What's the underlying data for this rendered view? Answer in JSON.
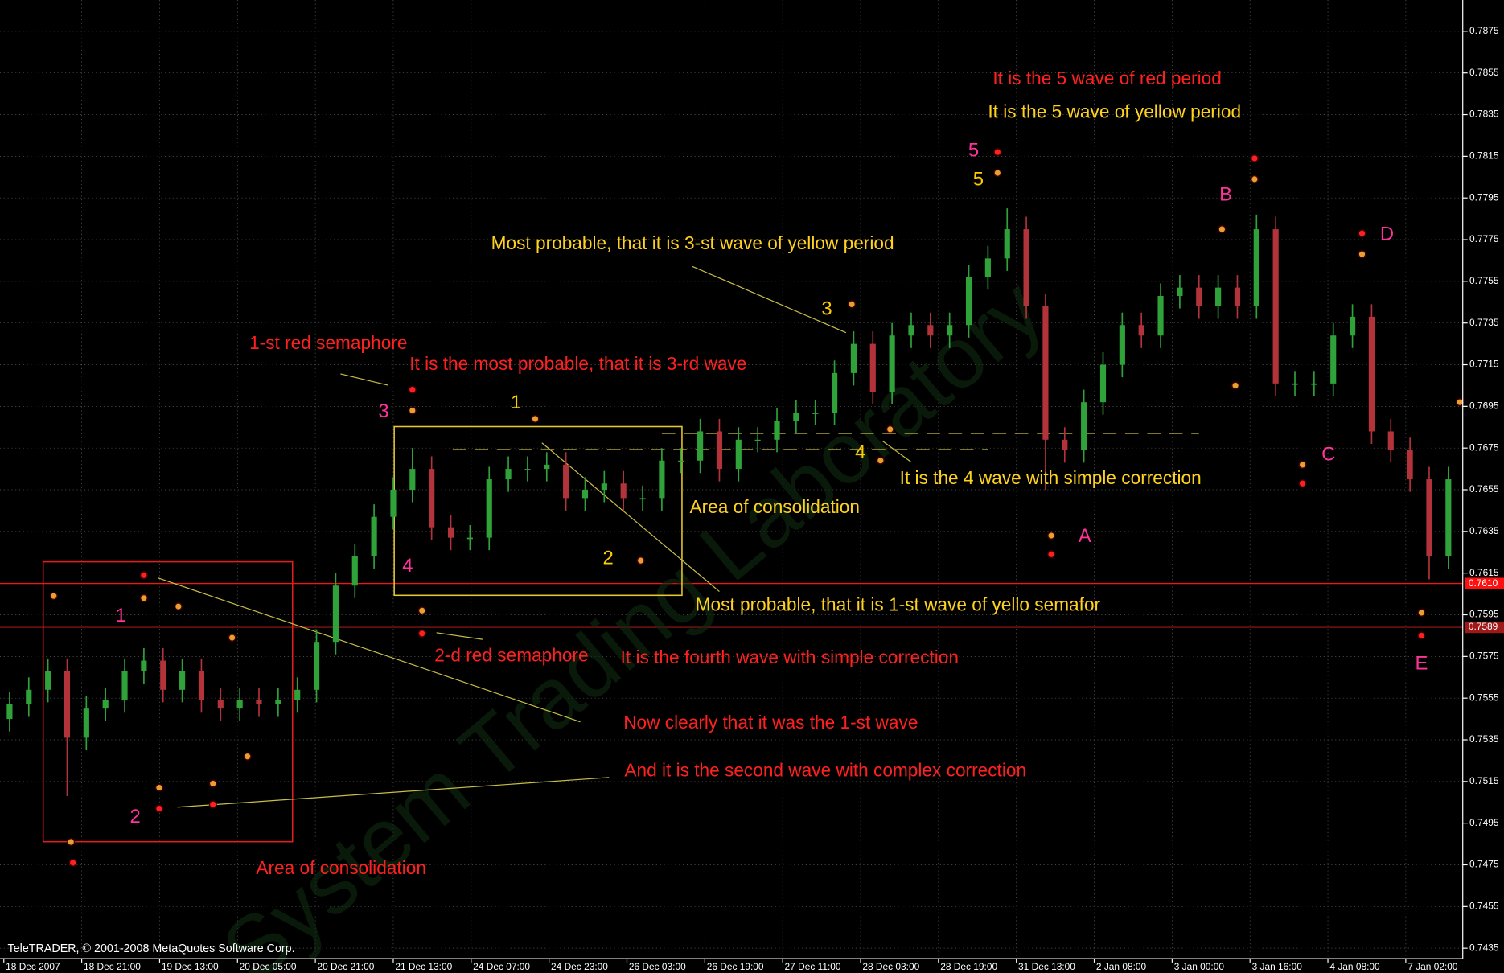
{
  "footer": "TeleTRADER, © 2001-2008 MetaQuotes Software Corp.",
  "watermark": "System Trading Laboratory",
  "chart_data": {
    "type": "candlestick",
    "categories": [
      "18 Dec 2007",
      "18 Dec 21:00",
      "19 Dec 13:00",
      "20 Dec 05:00",
      "20 Dec 21:00",
      "21 Dec 13:00",
      "24 Dec 07:00",
      "24 Dec 23:00",
      "26 Dec 03:00",
      "26 Dec 19:00",
      "27 Dec 11:00",
      "28 Dec 03:00",
      "28 Dec 19:00",
      "31 Dec 13:00",
      "2 Jan 08:00",
      "3 Jan 00:00",
      "3 Jan 16:00",
      "4 Jan 08:00",
      "7 Jan 02:00"
    ],
    "open": [
      0.7545,
      0.7552,
      0.7559,
      0.7568,
      0.7536,
      0.755,
      0.7554,
      0.7568,
      0.7573,
      0.7559,
      0.7568,
      0.7554,
      0.755,
      0.7554,
      0.7552,
      0.7554,
      0.7559,
      0.7582,
      0.7609,
      0.7623,
      0.7642,
      0.7655,
      0.7665,
      0.7637,
      0.7632,
      0.7632,
      0.766,
      0.7665,
      0.7665,
      0.7667,
      0.7651,
      0.7655,
      0.7658,
      0.7651,
      0.7651,
      0.7669,
      0.7669,
      0.7683,
      0.7665,
      0.7679,
      0.7679,
      0.7688,
      0.7692,
      0.7692,
      0.7711,
      0.7725,
      0.7702,
      0.7729,
      0.7734,
      0.7729,
      0.7734,
      0.7757,
      0.7766,
      0.778,
      0.7743,
      0.7679,
      0.7674,
      0.7697,
      0.7715,
      0.7734,
      0.7729,
      0.7748,
      0.7752,
      0.7743,
      0.7752,
      0.7743,
      0.778,
      0.7706,
      0.7706,
      0.7706,
      0.7729,
      0.7738,
      0.7683,
      0.7674,
      0.766,
      0.7623
    ],
    "high": [
      0.7558,
      0.7565,
      0.7574,
      0.7574,
      0.7556,
      0.756,
      0.7574,
      0.7579,
      0.7579,
      0.7574,
      0.7574,
      0.756,
      0.756,
      0.756,
      0.756,
      0.7565,
      0.7588,
      0.7615,
      0.7629,
      0.7648,
      0.7661,
      0.7675,
      0.7671,
      0.7643,
      0.7638,
      0.7666,
      0.7671,
      0.7671,
      0.7673,
      0.7673,
      0.7661,
      0.7664,
      0.7664,
      0.7657,
      0.7675,
      0.7675,
      0.7689,
      0.7689,
      0.7685,
      0.7685,
      0.7694,
      0.7698,
      0.7698,
      0.7717,
      0.7731,
      0.7731,
      0.7735,
      0.774,
      0.774,
      0.774,
      0.7763,
      0.7772,
      0.779,
      0.7786,
      0.7749,
      0.7685,
      0.7703,
      0.7721,
      0.774,
      0.774,
      0.7754,
      0.7758,
      0.7758,
      0.7758,
      0.7758,
      0.7787,
      0.7786,
      0.7712,
      0.7712,
      0.7735,
      0.7744,
      0.7744,
      0.7689,
      0.768,
      0.7666,
      0.7666
    ],
    "low": [
      0.7539,
      0.7546,
      0.7553,
      0.7508,
      0.753,
      0.7544,
      0.7548,
      0.7562,
      0.7553,
      0.7553,
      0.7548,
      0.7544,
      0.7544,
      0.7546,
      0.7546,
      0.7548,
      0.7553,
      0.7576,
      0.7603,
      0.7617,
      0.7636,
      0.7649,
      0.7631,
      0.7626,
      0.7626,
      0.7626,
      0.7654,
      0.7659,
      0.7659,
      0.7645,
      0.7645,
      0.7649,
      0.7645,
      0.7645,
      0.7645,
      0.7663,
      0.7663,
      0.7659,
      0.7659,
      0.7673,
      0.7673,
      0.7682,
      0.7686,
      0.7686,
      0.7705,
      0.7696,
      0.7696,
      0.7723,
      0.7723,
      0.7723,
      0.7728,
      0.7751,
      0.776,
      0.7737,
      0.7655,
      0.7668,
      0.7668,
      0.7691,
      0.7709,
      0.7723,
      0.7723,
      0.7742,
      0.7737,
      0.7737,
      0.7737,
      0.7737,
      0.77,
      0.77,
      0.77,
      0.77,
      0.7723,
      0.7677,
      0.7668,
      0.7654,
      0.7612,
      0.7617
    ],
    "close": [
      0.7552,
      0.7559,
      0.7568,
      0.7536,
      0.755,
      0.7554,
      0.7568,
      0.7573,
      0.7559,
      0.7568,
      0.7554,
      0.755,
      0.7554,
      0.7552,
      0.7554,
      0.7559,
      0.7582,
      0.7609,
      0.7623,
      0.7642,
      0.7655,
      0.7665,
      0.7637,
      0.7632,
      0.7632,
      0.766,
      0.7665,
      0.7665,
      0.7667,
      0.7651,
      0.7655,
      0.7658,
      0.7651,
      0.7651,
      0.7669,
      0.7669,
      0.7683,
      0.7665,
      0.7679,
      0.7679,
      0.7688,
      0.7692,
      0.7692,
      0.7711,
      0.7725,
      0.7702,
      0.7729,
      0.7734,
      0.7729,
      0.7734,
      0.7757,
      0.7766,
      0.778,
      0.7743,
      0.7679,
      0.7674,
      0.7697,
      0.7715,
      0.7734,
      0.7729,
      0.7748,
      0.7752,
      0.7743,
      0.7752,
      0.7743,
      0.778,
      0.7706,
      0.7706,
      0.7706,
      0.7729,
      0.7738,
      0.7683,
      0.7674,
      0.766,
      0.7623,
      0.766
    ],
    "up_color": "#2fa33a",
    "down_color": "#b3333a",
    "ylim": [
      0.743,
      0.789
    ],
    "yticks": [
      0.7435,
      0.7455,
      0.7475,
      0.7495,
      0.7515,
      0.7535,
      0.7555,
      0.7575,
      0.7595,
      0.7615,
      0.7635,
      0.7655,
      0.7675,
      0.7695,
      0.7715,
      0.7735,
      0.7755,
      0.7775,
      0.7795,
      0.7815,
      0.7835,
      0.7855,
      0.7875
    ],
    "grid": true,
    "price_lines": [
      {
        "value": 0.761,
        "label": "0.7610",
        "color": "#ff1010"
      },
      {
        "value": 0.7589,
        "label": "0.7589",
        "color": "#a01818"
      }
    ],
    "markers": [
      {
        "color": "#ff2020",
        "x": [
          7,
          3.3,
          7.8,
          10.6,
          21,
          21.5,
          51.5,
          54.3,
          64.9,
          67.4,
          70.5,
          73.6
        ],
        "y": [
          0.7614,
          0.7476,
          0.7502,
          0.7504,
          0.7703,
          0.7586,
          0.7817,
          0.7624,
          0.7814,
          0.7658,
          0.7778,
          0.7585
        ]
      },
      {
        "color": "#e8a030",
        "x": [
          2.3,
          7,
          8.8,
          11.6,
          3.2,
          7.8,
          10.6,
          12.4,
          21,
          21.5,
          27.4,
          32.9,
          43.9,
          45.9,
          45.4,
          51.5,
          54.3,
          63.2,
          64.9,
          63.9,
          67.4,
          70.5,
          73.6,
          75.6
        ],
        "y": [
          0.7604,
          0.7603,
          0.7599,
          0.7584,
          0.7486,
          0.7512,
          0.7514,
          0.7527,
          0.7693,
          0.7597,
          0.7689,
          0.7621,
          0.7744,
          0.7684,
          0.7669,
          0.7807,
          0.7633,
          0.778,
          0.7804,
          0.7705,
          0.7667,
          0.7768,
          0.7596,
          0.7697
        ]
      }
    ],
    "annotations": [
      {
        "text": "It is the 5 wave of red period",
        "color": "#ff2020"
      },
      {
        "text": "It is the 5 wave of yellow period",
        "color": "#ffd21f"
      },
      {
        "text": "Most probable, that it is 3-st wave of yellow period",
        "color": "#ffd21f"
      },
      {
        "text": "1-st red semaphore",
        "color": "#ff2020"
      },
      {
        "text": "It is the most probable, that it is 3-rd wave",
        "color": "#ff2020"
      },
      {
        "text": "It is the 4 wave with simple correction",
        "color": "#ffd21f"
      },
      {
        "text": "Area of consolidation",
        "color": "#ffd21f"
      },
      {
        "text": "Most probable, that it is 1-st wave of yello semafor",
        "color": "#ffd21f"
      },
      {
        "text": "2-d red semaphore",
        "color": "#ff2020"
      },
      {
        "text": "It is the fourth wave with simple correction",
        "color": "#ff2020"
      },
      {
        "text": "Now clearly that it was the 1-st wave",
        "color": "#ff2020"
      },
      {
        "text": "And it is the second wave with complex correction",
        "color": "#ff2020"
      },
      {
        "text": "Area of consolidation",
        "color": "#ff2020"
      }
    ],
    "wave_labels": [
      {
        "text": "5",
        "color": "#ff3399"
      },
      {
        "text": "5",
        "color": "#ffcc00"
      },
      {
        "text": "B",
        "color": "#ff3399"
      },
      {
        "text": "D",
        "color": "#ff3399"
      },
      {
        "text": "3",
        "color": "#ffcc00"
      },
      {
        "text": "C",
        "color": "#ff3399"
      },
      {
        "text": "A",
        "color": "#ff3399"
      },
      {
        "text": "1",
        "color": "#ffcc00"
      },
      {
        "text": "3",
        "color": "#ff3399"
      },
      {
        "text": "4",
        "color": "#ffcc00"
      },
      {
        "text": "2",
        "color": "#ffcc00"
      },
      {
        "text": "4",
        "color": "#ff3399"
      },
      {
        "text": "1",
        "color": "#ff3399"
      },
      {
        "text": "2",
        "color": "#ff3399"
      },
      {
        "text": "E",
        "color": "#ff3399"
      }
    ]
  }
}
